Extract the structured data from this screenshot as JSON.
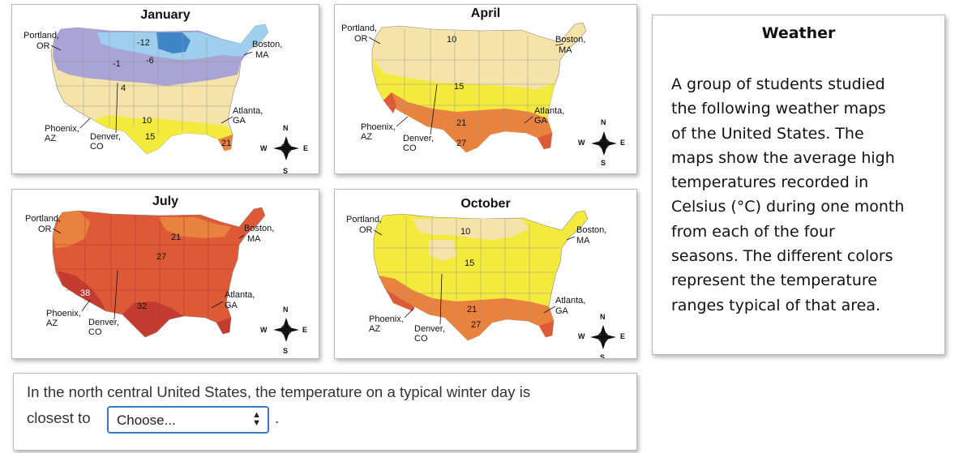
{
  "maps": [
    {
      "title": "January",
      "labels": {
        "portland": [
          "Portland,",
          "OR"
        ],
        "boston": [
          "Boston,",
          "MA"
        ],
        "phoenix": [
          "Phoenix,",
          "AZ"
        ],
        "denver": [
          "Denver,",
          "CO"
        ],
        "atlanta": [
          "Atlanta,",
          "GA"
        ]
      },
      "values": [
        "-12",
        "-6",
        "-1",
        "4",
        "10",
        "15",
        "21"
      ],
      "compass": {
        "n": "N",
        "s": "S",
        "e": "E",
        "w": "W"
      }
    },
    {
      "title": "April",
      "labels": {
        "portland": [
          "Portland,",
          "OR"
        ],
        "boston": [
          "Boston,",
          "MA"
        ],
        "phoenix": [
          "Phoenix,",
          "AZ"
        ],
        "denver": [
          "Denver,",
          "CO"
        ],
        "atlanta": [
          "Atlanta,",
          "GA"
        ]
      },
      "values": [
        "10",
        "15",
        "21",
        "27"
      ],
      "compass": {
        "n": "N",
        "s": "S",
        "e": "E",
        "w": "W"
      }
    },
    {
      "title": "July",
      "labels": {
        "portland": [
          "Portland,",
          "OR"
        ],
        "boston": [
          "Boston,",
          "MA"
        ],
        "phoenix": [
          "Phoenix,",
          "AZ"
        ],
        "denver": [
          "Denver,",
          "CO"
        ],
        "atlanta": [
          "Atlanta,",
          "GA"
        ]
      },
      "values": [
        "21",
        "27",
        "38",
        "32"
      ],
      "compass": {
        "n": "N",
        "s": "S",
        "e": "E",
        "w": "W"
      }
    },
    {
      "title": "October",
      "labels": {
        "portland": [
          "Portland,",
          "OR"
        ],
        "boston": [
          "Boston,",
          "MA"
        ],
        "phoenix": [
          "Phoenix,",
          "AZ"
        ],
        "denver": [
          "Denver,",
          "CO"
        ],
        "atlanta": [
          "Atlanta,",
          "GA"
        ]
      },
      "values": [
        "10",
        "15",
        "21",
        "27"
      ],
      "compass": {
        "n": "N",
        "s": "S",
        "e": "E",
        "w": "W"
      }
    }
  ],
  "info": {
    "title": "Weather",
    "body_lines": [
      "A group of students studied",
      "the following weather maps",
      "of the United States.  The",
      "maps show the average high",
      "temperatures recorded in",
      "Celsius (°C) during one month",
      "from each of the four",
      "seasons.  The different colors",
      "represent the temperature",
      "ranges typical of that area."
    ]
  },
  "question": {
    "text": "In the north central United States, the temperature on a typical winter day is",
    "lead": "closest to",
    "select_value": "Choose...",
    "period": "."
  },
  "colors": {
    "cold_dark": "#3f86c8",
    "cold": "#9ecfee",
    "cool_purple": "#a9a3d6",
    "mild": "#f6e3a9",
    "warm_yellow": "#f3ea3c",
    "hot_orange": "#e9823f",
    "very_hot": "#de5a36",
    "hottest": "#c43b2f",
    "select_border": "#3a78c3"
  }
}
